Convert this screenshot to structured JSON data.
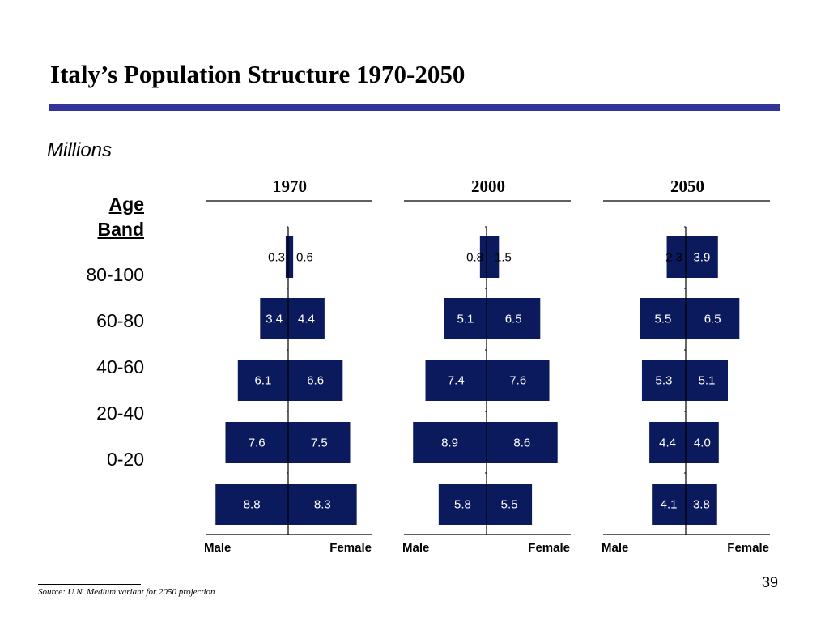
{
  "slide": {
    "title": "Italy’s Population Structure 1970-2050",
    "subtitle": "Millions",
    "age_band_header": [
      "Age",
      "Band"
    ],
    "source": "Source: U.N. Medium variant for 2050 projection",
    "page_number": "39"
  },
  "colors": {
    "accent": "#333399",
    "bar": "#0b1a5c"
  },
  "chart_data": [
    {
      "type": "bar",
      "title": "1970",
      "categories": [
        "80-100",
        "60-80",
        "40-60",
        "20-40",
        "0-20"
      ],
      "series": [
        {
          "name": "Male",
          "values": [
            0.3,
            3.4,
            6.1,
            7.6,
            8.8
          ]
        },
        {
          "name": "Female",
          "values": [
            0.6,
            4.4,
            6.6,
            7.5,
            8.3
          ]
        }
      ],
      "xlabel_left": "Male",
      "xlabel_right": "Female"
    },
    {
      "type": "bar",
      "title": "2000",
      "categories": [
        "80-100",
        "60-80",
        "40-60",
        "20-40",
        "0-20"
      ],
      "series": [
        {
          "name": "Male",
          "values": [
            0.8,
            5.1,
            7.4,
            8.9,
            5.8
          ]
        },
        {
          "name": "Female",
          "values": [
            1.5,
            6.5,
            7.6,
            8.6,
            5.5
          ]
        }
      ],
      "xlabel_left": "Male",
      "xlabel_right": "Female"
    },
    {
      "type": "bar",
      "title": "2050",
      "categories": [
        "80-100",
        "60-80",
        "40-60",
        "20-40",
        "0-20"
      ],
      "series": [
        {
          "name": "Male",
          "values": [
            2.3,
            5.5,
            5.3,
            4.4,
            4.1
          ]
        },
        {
          "name": "Female",
          "values": [
            3.9,
            6.5,
            5.1,
            4.0,
            3.8
          ]
        }
      ],
      "xlabel_left": "Male",
      "xlabel_right": "Female"
    }
  ]
}
